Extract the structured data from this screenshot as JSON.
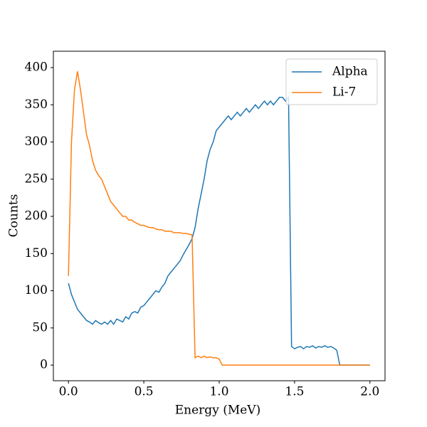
{
  "chart_data": {
    "type": "line",
    "x_label": "Energy (MeV)",
    "y_label": "Counts",
    "x": [
      0,
      0.02,
      0.04,
      0.06,
      0.08,
      0.1,
      0.12,
      0.14,
      0.16,
      0.18,
      0.2,
      0.22,
      0.24,
      0.26,
      0.28,
      0.3,
      0.32,
      0.34,
      0.36,
      0.38,
      0.4,
      0.42,
      0.44,
      0.46,
      0.48,
      0.5,
      0.52,
      0.54,
      0.56,
      0.58,
      0.6,
      0.62,
      0.64,
      0.66,
      0.68,
      0.7,
      0.72,
      0.74,
      0.76,
      0.78,
      0.8,
      0.82,
      0.84,
      0.86,
      0.88,
      0.9,
      0.92,
      0.94,
      0.96,
      0.98,
      1,
      1.02,
      1.04,
      1.06,
      1.08,
      1.1,
      1.12,
      1.14,
      1.16,
      1.18,
      1.2,
      1.22,
      1.24,
      1.26,
      1.28,
      1.3,
      1.32,
      1.34,
      1.36,
      1.38,
      1.4,
      1.42,
      1.44,
      1.46,
      1.48,
      1.5,
      1.52,
      1.54,
      1.56,
      1.58,
      1.6,
      1.62,
      1.64,
      1.66,
      1.68,
      1.7,
      1.72,
      1.74,
      1.76,
      1.78,
      1.8,
      1.82,
      1.84,
      1.86,
      1.88,
      1.9,
      1.92,
      1.94,
      1.96,
      1.98,
      2
    ],
    "series": [
      {
        "name": "Alpha",
        "color": "#1f77b4",
        "values": [
          110,
          95,
          85,
          75,
          70,
          65,
          60,
          58,
          55,
          60,
          57,
          55,
          58,
          55,
          60,
          55,
          62,
          60,
          58,
          65,
          62,
          70,
          72,
          70,
          78,
          80,
          85,
          90,
          95,
          100,
          98,
          105,
          110,
          120,
          125,
          130,
          135,
          140,
          148,
          155,
          162,
          170,
          185,
          210,
          230,
          250,
          275,
          290,
          300,
          315,
          320,
          325,
          330,
          335,
          330,
          335,
          340,
          335,
          340,
          345,
          340,
          345,
          350,
          345,
          350,
          355,
          350,
          355,
          350,
          355,
          360,
          360,
          355,
          360,
          25,
          22,
          24,
          25,
          22,
          25,
          24,
          26,
          23,
          25,
          24,
          26,
          24,
          25,
          23,
          20,
          0,
          0,
          0,
          0,
          0,
          0,
          0,
          0,
          0,
          0,
          0
        ]
      },
      {
        "name": "Li-7",
        "color": "#ff7f0e",
        "values": [
          120,
          300,
          370,
          395,
          370,
          340,
          310,
          295,
          275,
          262,
          255,
          250,
          240,
          230,
          220,
          215,
          210,
          205,
          200,
          200,
          195,
          195,
          192,
          190,
          188,
          188,
          186,
          185,
          185,
          183,
          182,
          182,
          180,
          180,
          180,
          178,
          178,
          178,
          177,
          177,
          176,
          175,
          10,
          12,
          10,
          12,
          10,
          11,
          10,
          10,
          8,
          0,
          0,
          0,
          0,
          0,
          0,
          0,
          0,
          0,
          0,
          0,
          0,
          0,
          0,
          0,
          0,
          0,
          0,
          0,
          0,
          0,
          0,
          0,
          0,
          0,
          0,
          0,
          0,
          0,
          0,
          0,
          0,
          0,
          0,
          0,
          0,
          0,
          0,
          0,
          0,
          0,
          0,
          0,
          0,
          0,
          0,
          0,
          0,
          0,
          0
        ]
      }
    ],
    "xlim": [
      -0.1,
      2.1
    ],
    "ylim": [
      -21,
      422
    ],
    "xticks": [
      {
        "value": 0,
        "label": "0.0"
      },
      0.5,
      {
        "value": 1,
        "label": "1.0"
      },
      1.5,
      {
        "value": 2,
        "label": "2.0"
      }
    ],
    "yticks": [
      0,
      50,
      100,
      150,
      200,
      250,
      300,
      350,
      400
    ],
    "legend": "upper right"
  }
}
